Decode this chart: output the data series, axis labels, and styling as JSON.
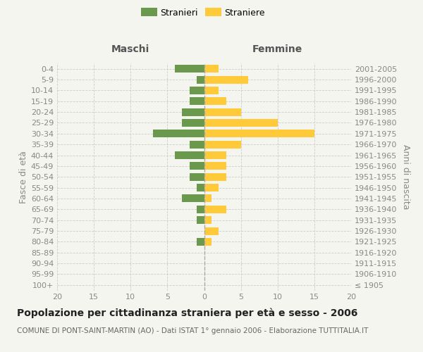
{
  "age_groups": [
    "100+",
    "95-99",
    "90-94",
    "85-89",
    "80-84",
    "75-79",
    "70-74",
    "65-69",
    "60-64",
    "55-59",
    "50-54",
    "45-49",
    "40-44",
    "35-39",
    "30-34",
    "25-29",
    "20-24",
    "15-19",
    "10-14",
    "5-9",
    "0-4"
  ],
  "birth_years": [
    "≤ 1905",
    "1906-1910",
    "1911-1915",
    "1916-1920",
    "1921-1925",
    "1926-1930",
    "1931-1935",
    "1936-1940",
    "1941-1945",
    "1946-1950",
    "1951-1955",
    "1956-1960",
    "1961-1965",
    "1966-1970",
    "1971-1975",
    "1976-1980",
    "1981-1985",
    "1986-1990",
    "1991-1995",
    "1996-2000",
    "2001-2005"
  ],
  "maschi": [
    0,
    0,
    0,
    0,
    1,
    0,
    1,
    1,
    3,
    1,
    2,
    2,
    4,
    2,
    7,
    3,
    3,
    2,
    2,
    1,
    4
  ],
  "femmine": [
    0,
    0,
    0,
    0,
    1,
    2,
    1,
    3,
    1,
    2,
    3,
    3,
    3,
    5,
    15,
    10,
    5,
    3,
    2,
    6,
    2
  ],
  "maschi_color": "#6a994e",
  "femmine_color": "#ffca3a",
  "background_color": "#f5f5f0",
  "grid_color": "#cccccc",
  "title": "Popolazione per cittadinanza straniera per età e sesso - 2006",
  "subtitle": "COMUNE DI PONT-SAINT-MARTIN (AO) - Dati ISTAT 1° gennaio 2006 - Elaborazione TUTTITALIA.IT",
  "ylabel_left": "Fasce di età",
  "ylabel_right": "Anni di nascita",
  "xlabel_maschi": "Maschi",
  "xlabel_femmine": "Femmine",
  "legend_maschi": "Stranieri",
  "legend_femmine": "Straniere",
  "xlim": 20,
  "title_fontsize": 10,
  "subtitle_fontsize": 7.5,
  "axis_label_fontsize": 9,
  "tick_fontsize": 8,
  "header_fontsize": 10
}
